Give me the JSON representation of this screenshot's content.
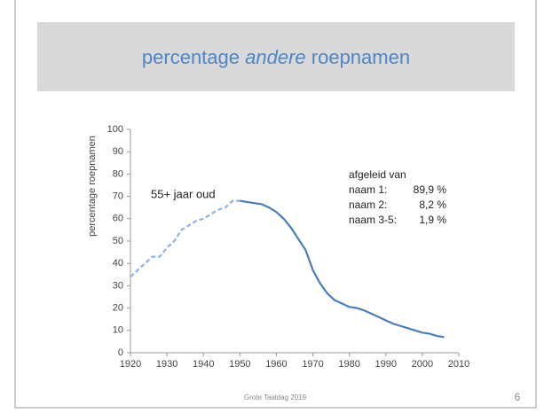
{
  "slide": {
    "title_parts": [
      "percentage",
      "andere",
      "roepnamen"
    ],
    "footer": "Grote Taaldag 2019",
    "page_number": 6
  },
  "chart_data": {
    "type": "line",
    "ylabel": "percentage roepnamen",
    "xlim": [
      1920,
      2010
    ],
    "xticks": [
      1920,
      1930,
      1940,
      1950,
      1960,
      1970,
      1980,
      1990,
      2000,
      2010
    ],
    "ylim": [
      0,
      100
    ],
    "yticks": [
      0,
      10,
      20,
      30,
      40,
      50,
      60,
      70,
      80,
      90,
      100
    ],
    "series": [
      {
        "color": "#8db3e2",
        "style": "dashed",
        "x": [
          1920,
          1922,
          1924,
          1926,
          1928,
          1930,
          1932,
          1934,
          1936,
          1938,
          1940,
          1942,
          1944,
          1946,
          1948,
          1950
        ],
        "values": [
          34,
          37,
          40,
          43,
          43,
          47,
          50,
          55,
          57,
          59,
          60,
          62,
          64,
          65,
          68,
          68
        ]
      },
      {
        "color": "#4a7ebb",
        "style": "solid",
        "x": [
          1950,
          1952,
          1954,
          1956,
          1958,
          1960,
          1962,
          1964,
          1966,
          1968,
          1970,
          1972,
          1974,
          1976,
          1978,
          1980,
          1982,
          1984,
          1986,
          1988,
          1990,
          1992,
          1994,
          1996,
          1998,
          2000,
          2002,
          2004,
          2006
        ],
        "values": [
          68,
          67.5,
          67,
          66.5,
          65,
          63,
          60,
          56,
          51,
          46,
          37,
          31,
          26.5,
          23.5,
          22,
          20.5,
          20,
          19,
          17.5,
          16,
          14.5,
          13,
          12,
          11,
          10,
          9,
          8.5,
          7.5,
          7
        ]
      }
    ],
    "annotations": [
      "55+ jaar oud",
      "afgeleid van"
    ],
    "breakdown": [
      [
        "naam 1:",
        "89,9 %"
      ],
      [
        "naam 2:",
        "8,2 %"
      ],
      [
        "naam 3-5:",
        "1,9 %"
      ]
    ]
  }
}
